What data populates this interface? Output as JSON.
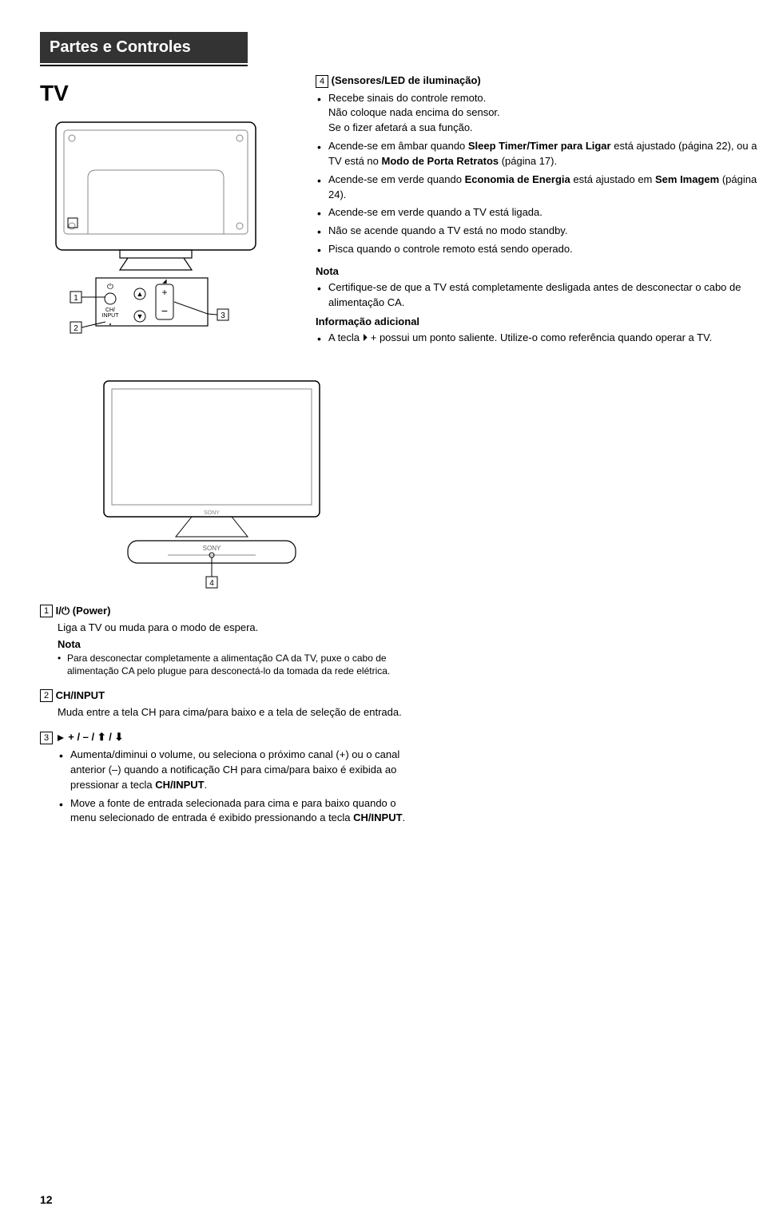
{
  "header": {
    "title": "Partes e Controles",
    "subtitle": "TV"
  },
  "section4": {
    "title": "(Sensores/LED de iluminação)",
    "num": "4",
    "bullets": [
      "Recebe sinais do controle remoto.\nNão coloque nada encima do sensor.\nSe o fizer afetará a sua função.",
      "Acende-se em âmbar quando <b>Sleep Timer/Timer para Ligar</b> está ajustado (página 22), ou a TV está no <b>Modo de Porta Retratos</b> (página 17).",
      "Acende-se em verde quando <b>Economia de Energia</b> está ajustado em <b>Sem Imagem</b> (página 24).",
      "Acende-se em verde quando a TV está ligada.",
      "Não se acende quando a TV está no modo standby.",
      "Pisca quando o controle remoto está sendo operado."
    ],
    "nota_label": "Nota",
    "nota_bullet": "Certifique-se de que a TV está completamente desligada antes de desconectar o cabo de alimentação CA.",
    "info_label": "Informação adicional",
    "info_bullet": "A tecla ⏵ + possui um ponto saliente. Utilize-o como referência quando operar a TV."
  },
  "items": {
    "i1": {
      "num": "1",
      "title": "⏻ (Power)",
      "desc": "Liga a TV ou muda para o modo de espera.",
      "nota_label": "Nota",
      "nota_bullet": "Para desconectar completamente a alimentação CA da TV, puxe o cabo de alimentação CA pelo plugue para desconectá-lo da tomada da rede elétrica."
    },
    "i2": {
      "num": "2",
      "title": "CH/INPUT",
      "desc": "Muda entre a tela CH para cima/para baixo e a tela de seleção de entrada."
    },
    "i3": {
      "num": "3",
      "title": "⏵ + / – / ⬆ / ⬇",
      "b1": "Aumenta/diminui o volume, ou seleciona o próximo canal (+) ou o canal anterior (–) quando a notificação CH para cima/para baixo é exibida ao pressionar a tecla <b>CH/INPUT</b>.",
      "b2": "Move a fonte de entrada selecionada para cima e para baixo quando o menu selecionado de entrada é exibido pressionando a tecla <b>CH/INPUT</b>."
    }
  },
  "callouts": {
    "c1": "1",
    "c2": "2",
    "c3": "3",
    "c4": "4"
  },
  "diagram": {
    "ch_input": "CH/\nINPUT",
    "sony": "SONY"
  },
  "page": "12"
}
